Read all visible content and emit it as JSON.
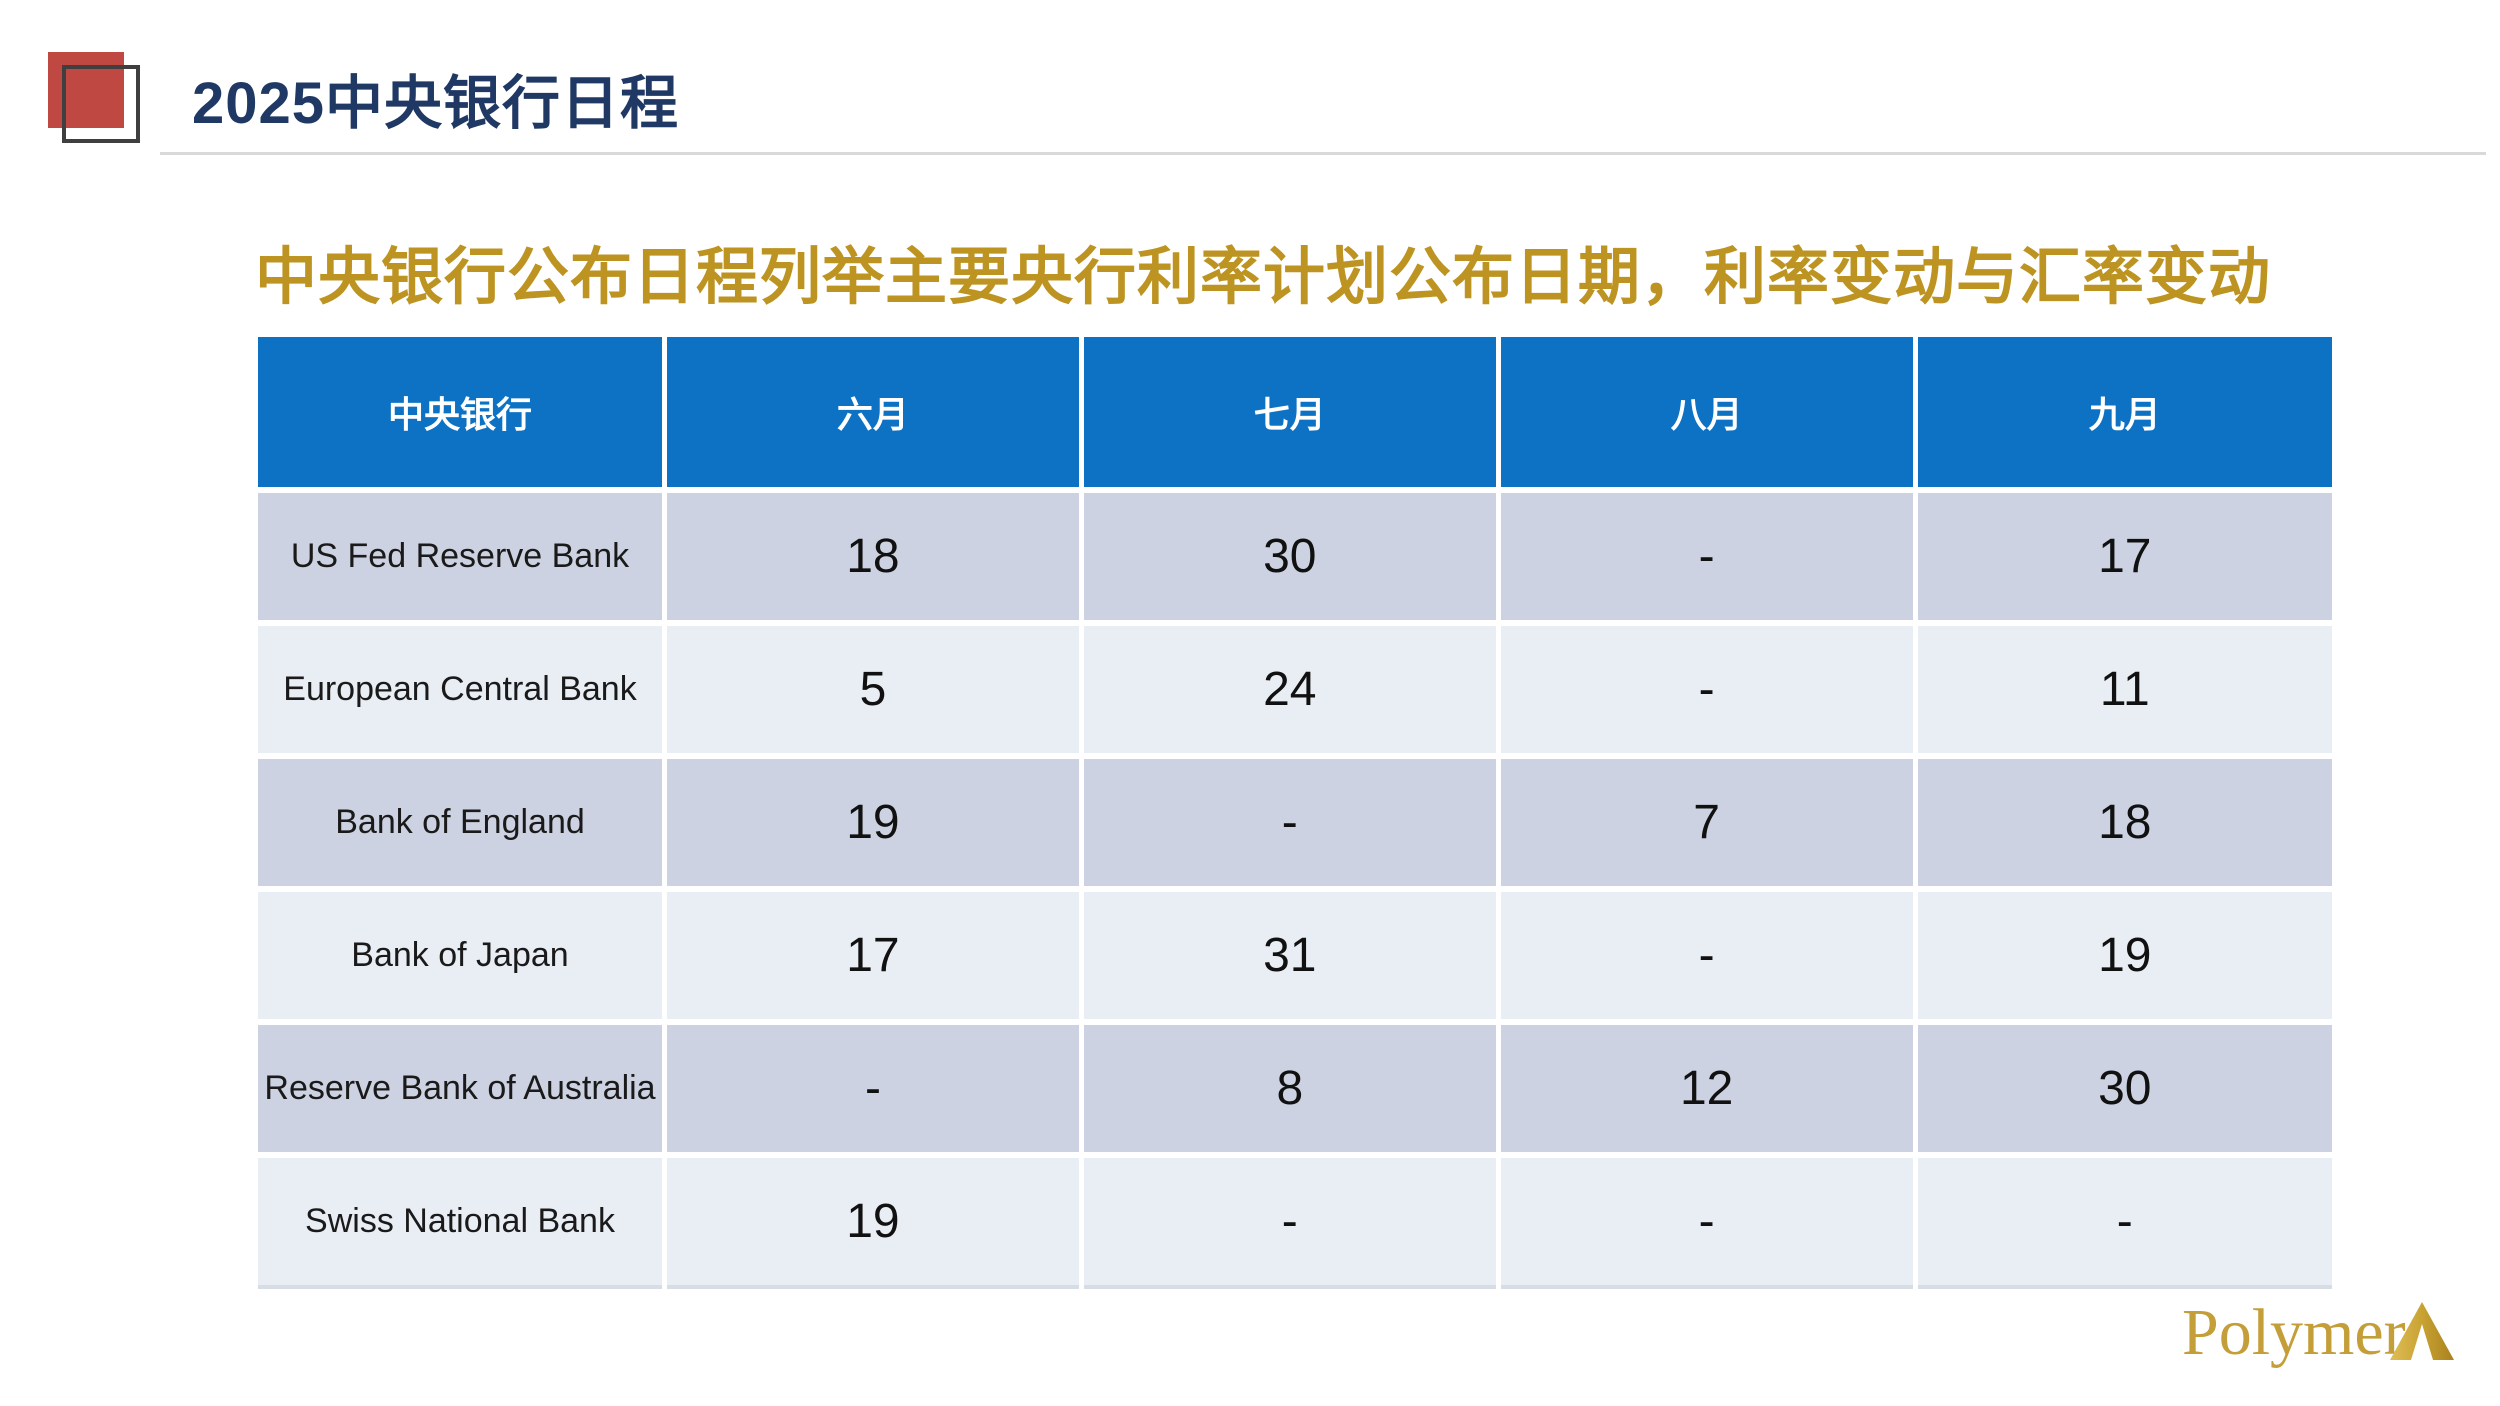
{
  "slide": {
    "title": "2025中央银行日程",
    "subtitle": "中央银行公布日程列举主要央行利率计划公布日期，利率变动与汇率变动",
    "brand": "Polymer"
  },
  "table": {
    "headers": [
      "中央银行",
      "六月",
      "七月",
      "八月",
      "九月"
    ],
    "rows": [
      {
        "bank": "US Fed Reserve Bank",
        "values": [
          "18",
          "30",
          "-",
          "17"
        ]
      },
      {
        "bank": "European Central Bank",
        "values": [
          "5",
          "24",
          "-",
          "11"
        ]
      },
      {
        "bank": "Bank of England",
        "values": [
          "19",
          "-",
          "7",
          "18"
        ]
      },
      {
        "bank": "Bank of Japan",
        "values": [
          "17",
          "31",
          "-",
          "19"
        ]
      },
      {
        "bank": "Reserve Bank of Australia",
        "values": [
          "-",
          "8",
          "12",
          "30"
        ]
      },
      {
        "bank": "Swiss National Bank",
        "values": [
          "19",
          "-",
          "-",
          "-"
        ]
      }
    ]
  },
  "colors": {
    "header_blue": "#0D72C4",
    "row_band_dark": "#CCD2E1",
    "row_band_light": "#E9EDF4",
    "title_navy": "#1F3864",
    "subtitle_gold": "#BD9422",
    "accent_red": "#C04843",
    "outline_gray": "#3F3F3F",
    "divider_gray": "#D9D9D9",
    "logo_gold": "#C49E38"
  },
  "icons": {
    "brand_triangle": "pyramid-caret"
  }
}
